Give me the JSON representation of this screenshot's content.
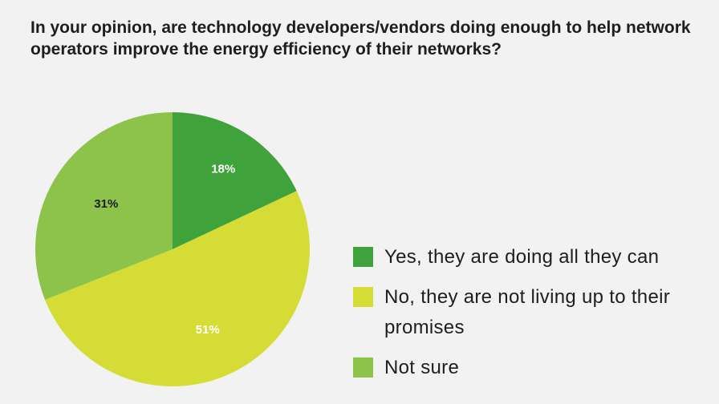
{
  "title": "In your opinion, are technology developers/vendors doing enough to help network operators improve the energy efficiency of their networks?",
  "chart_data": {
    "type": "pie",
    "slices": [
      {
        "label": "Yes, they are doing all they can",
        "value": 18,
        "display": "18%",
        "color": "#3fa23a",
        "text_color": "#ffffff"
      },
      {
        "label": "No, they are not living up to their promises",
        "value": 51,
        "display": "51%",
        "color": "#d6dc36",
        "text_color": "#ffffff"
      },
      {
        "label": "Not sure",
        "value": 31,
        "display": "31%",
        "color": "#8dc24b",
        "text_color": "#1e1e1e"
      }
    ],
    "legend_position": "right",
    "start": "top, clockwise"
  }
}
